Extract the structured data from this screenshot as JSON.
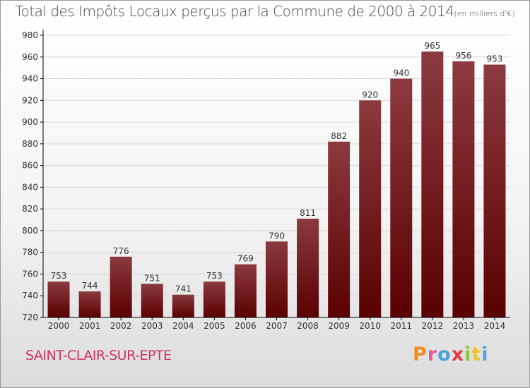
{
  "title": "Total des Impôts Locaux perçus par la Commune de 2000 à 2014",
  "unit": "(en milliers d'€)",
  "commune": "SAINT-CLAIR-SUR-EPTE",
  "brand": {
    "letters": [
      "P",
      "r",
      "o",
      "x",
      "i",
      "t",
      "i"
    ],
    "colors": [
      "#f08c1e",
      "#e85a9b",
      "#4aa3df",
      "#e63c3c",
      "#8cc63f",
      "#f2c12e",
      "#4aa3df"
    ]
  },
  "colors": {
    "bar_top": "#8b3a3f",
    "bar_bottom": "#5a0000",
    "grid": "#d7d7d7",
    "axis": "#000000",
    "text": "#333333"
  },
  "chart_data": {
    "type": "bar",
    "title": "Total des Impôts Locaux perçus par la Commune de 2000 à 2014",
    "xlabel": "",
    "ylabel": "",
    "categories": [
      "2000",
      "2001",
      "2002",
      "2003",
      "2004",
      "2005",
      "2006",
      "2007",
      "2008",
      "2009",
      "2010",
      "2011",
      "2012",
      "2013",
      "2014"
    ],
    "values": [
      753,
      744,
      776,
      751,
      741,
      753,
      769,
      790,
      811,
      882,
      920,
      940,
      965,
      956,
      953
    ],
    "ylim": [
      720,
      980
    ],
    "yticks": [
      720,
      740,
      760,
      780,
      800,
      820,
      840,
      860,
      880,
      900,
      920,
      940,
      960,
      980
    ],
    "grid": true
  }
}
